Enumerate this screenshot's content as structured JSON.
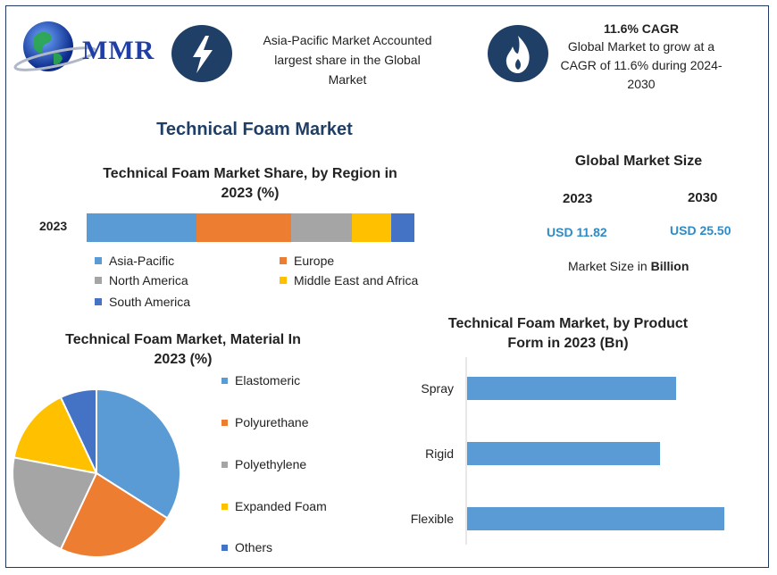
{
  "logo": {
    "text": "MMR"
  },
  "highlights": [
    {
      "icon": "lightning-icon",
      "text_lines": [
        "Asia-Pacific Market Accounted",
        "largest share in the Global",
        "Market"
      ]
    },
    {
      "icon": "flame-icon",
      "title": "11.6% CAGR",
      "text_lines": [
        "Global Market to grow at a",
        "CAGR of 11.6% during 2024-",
        "2030"
      ]
    }
  ],
  "main_title": "Technical Foam Market",
  "market_size": {
    "title": "Global Market Size",
    "year_a": "2023",
    "year_b": "2030",
    "value_a": "USD 11.82",
    "value_b": "USD 25.50",
    "note_prefix": "Market Size in ",
    "note_bold": "Billion"
  },
  "colors": {
    "navy": "#1f3f66",
    "blue": "#5b9bd5",
    "orange": "#ed7d31",
    "gray": "#a5a5a5",
    "yellow": "#ffc000",
    "darkblue": "#4472c4"
  },
  "chart_data": [
    {
      "type": "bar",
      "orientation": "horizontal-stacked",
      "title": "Technical Foam Market Share, by Region in 2023 (%)",
      "title_lines": [
        "Technical Foam Market Share, by Region in",
        "2023 (%)"
      ],
      "categories": [
        "2023"
      ],
      "xlim": [
        0,
        100
      ],
      "series": [
        {
          "name": "Asia-Pacific",
          "values": [
            33.5
          ],
          "color": "#5b9bd5"
        },
        {
          "name": "Europe",
          "values": [
            29
          ],
          "color": "#ed7d31"
        },
        {
          "name": "North America",
          "values": [
            18.5
          ],
          "color": "#a5a5a5"
        },
        {
          "name": "Middle East and Africa",
          "values": [
            12
          ],
          "color": "#ffc000"
        },
        {
          "name": "South America",
          "values": [
            7
          ],
          "color": "#4472c4"
        }
      ],
      "legend": "bottom"
    },
    {
      "type": "pie",
      "title": "Technical Foam Market, Material In 2023 (%)",
      "title_lines": [
        "Technical Foam Market, Material In",
        "2023 (%)"
      ],
      "categories": [
        "Elastomeric",
        "Polyurethane",
        "Polyethylene",
        "Expanded Foam",
        "Others"
      ],
      "values": [
        34,
        23,
        21,
        15,
        7
      ],
      "colors": [
        "#5b9bd5",
        "#ed7d31",
        "#a5a5a5",
        "#ffc000",
        "#4472c4"
      ],
      "legend": "right"
    },
    {
      "type": "bar",
      "orientation": "horizontal",
      "title": "Technical Foam Market, by Product Form in 2023 (Bn)",
      "title_lines": [
        "Technical Foam Market, by Product",
        "Form in 2023 (Bn)"
      ],
      "categories": [
        "Spray",
        "Rigid",
        "Flexible"
      ],
      "values": [
        3.9,
        3.6,
        4.8
      ],
      "xlim": [
        0,
        5
      ],
      "color": "#5b9bd5"
    }
  ]
}
